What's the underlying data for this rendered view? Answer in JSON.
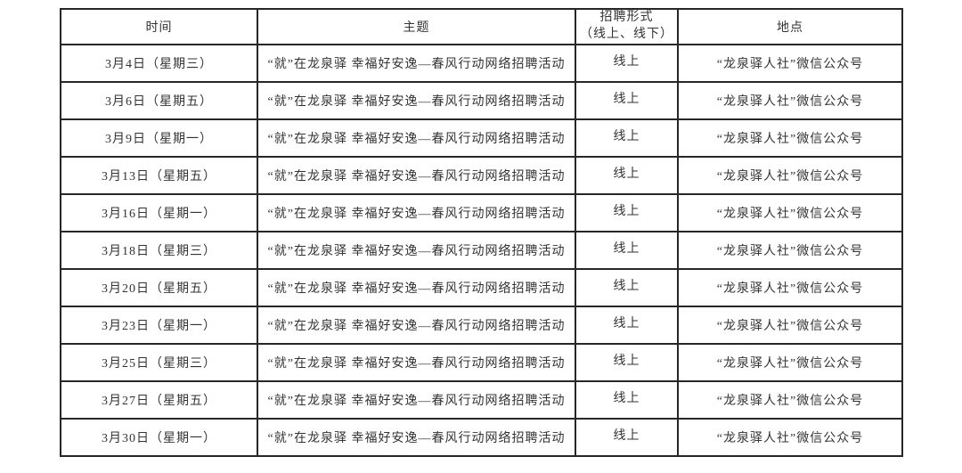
{
  "colors": {
    "background": "#ffffff",
    "border": "#262626",
    "text": "#333333"
  },
  "table": {
    "columns": [
      {
        "key": "time",
        "label": "时间"
      },
      {
        "key": "topic",
        "label": "主题"
      },
      {
        "key": "format",
        "label": "招聘形式\n（线上、线下）"
      },
      {
        "key": "location",
        "label": "地点"
      }
    ],
    "rows": [
      {
        "time": "3月4日（星期三）",
        "topic": "“就”在龙泉驿 幸福好安逸—春风行动网络招聘活动",
        "format": "线上",
        "location": "“龙泉驿人社”微信公众号"
      },
      {
        "time": "3月6日（星期五）",
        "topic": "“就”在龙泉驿 幸福好安逸—春风行动网络招聘活动",
        "format": "线上",
        "location": "“龙泉驿人社”微信公众号"
      },
      {
        "time": "3月9日（星期一）",
        "topic": "“就”在龙泉驿 幸福好安逸—春风行动网络招聘活动",
        "format": "线上",
        "location": "“龙泉驿人社”微信公众号"
      },
      {
        "time": "3月13日（星期五）",
        "topic": "“就”在龙泉驿 幸福好安逸—春风行动网络招聘活动",
        "format": "线上",
        "location": "“龙泉驿人社”微信公众号"
      },
      {
        "time": "3月16日（星期一）",
        "topic": "“就”在龙泉驿 幸福好安逸—春风行动网络招聘活动",
        "format": "线上",
        "location": "“龙泉驿人社”微信公众号"
      },
      {
        "time": "3月18日（星期三）",
        "topic": "“就”在龙泉驿 幸福好安逸—春风行动网络招聘活动",
        "format": "线上",
        "location": "“龙泉驿人社”微信公众号"
      },
      {
        "time": "3月20日（星期五）",
        "topic": "“就”在龙泉驿 幸福好安逸—春风行动网络招聘活动",
        "format": "线上",
        "location": "“龙泉驿人社”微信公众号"
      },
      {
        "time": "3月23日（星期一）",
        "topic": "“就”在龙泉驿 幸福好安逸—春风行动网络招聘活动",
        "format": "线上",
        "location": "“龙泉驿人社”微信公众号"
      },
      {
        "time": "3月25日（星期三）",
        "topic": "“就”在龙泉驿 幸福好安逸—春风行动网络招聘活动",
        "format": "线上",
        "location": "“龙泉驿人社”微信公众号"
      },
      {
        "time": "3月27日（星期五）",
        "topic": "“就”在龙泉驿 幸福好安逸—春风行动网络招聘活动",
        "format": "线上",
        "location": "“龙泉驿人社”微信公众号"
      },
      {
        "time": "3月30日（星期一）",
        "topic": "“就”在龙泉驿 幸福好安逸—春风行动网络招聘活动",
        "format": "线上",
        "location": "“龙泉驿人社”微信公众号"
      }
    ]
  }
}
